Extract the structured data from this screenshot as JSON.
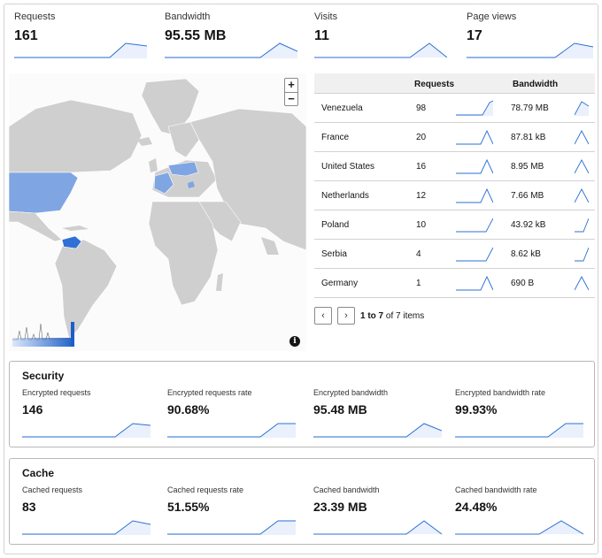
{
  "top_stats": [
    {
      "label": "Requests",
      "value": "161"
    },
    {
      "label": "Bandwidth",
      "value": "95.55 MB"
    },
    {
      "label": "Visits",
      "value": "11"
    },
    {
      "label": "Page views",
      "value": "17"
    }
  ],
  "map": {
    "zoom_in": "+",
    "zoom_out": "−",
    "info": "i",
    "colors": {
      "land": "#cfcfcf",
      "highlight_light": "#7fa6e3",
      "highlight_dark": "#2f6fd6",
      "ocean": "#fbfbfb"
    }
  },
  "table": {
    "headers": {
      "country": "",
      "requests": "Requests",
      "bandwidth": "Bandwidth"
    },
    "rows": [
      {
        "country": "Venezuela",
        "requests": "98",
        "bandwidth": "78.79 MB"
      },
      {
        "country": "France",
        "requests": "20",
        "bandwidth": "87.81 kB"
      },
      {
        "country": "United States",
        "requests": "16",
        "bandwidth": "8.95 MB"
      },
      {
        "country": "Netherlands",
        "requests": "12",
        "bandwidth": "7.66 MB"
      },
      {
        "country": "Poland",
        "requests": "10",
        "bandwidth": "43.92 kB"
      },
      {
        "country": "Serbia",
        "requests": "4",
        "bandwidth": "8.62 kB"
      },
      {
        "country": "Germany",
        "requests": "1",
        "bandwidth": "690 B"
      }
    ],
    "pagination": {
      "prev": "‹",
      "next": "›",
      "range": "1 to 7",
      "of_label": "of",
      "total": "7 items"
    }
  },
  "security": {
    "title": "Security",
    "stats": [
      {
        "label": "Encrypted requests",
        "value": "146"
      },
      {
        "label": "Encrypted requests rate",
        "value": "90.68%"
      },
      {
        "label": "Encrypted bandwidth",
        "value": "95.48 MB"
      },
      {
        "label": "Encrypted bandwidth rate",
        "value": "99.93%"
      }
    ]
  },
  "cache": {
    "title": "Cache",
    "stats": [
      {
        "label": "Cached requests",
        "value": "83"
      },
      {
        "label": "Cached requests rate",
        "value": "51.55%"
      },
      {
        "label": "Cached bandwidth",
        "value": "23.39 MB"
      },
      {
        "label": "Cached bandwidth rate",
        "value": "24.48%"
      }
    ]
  },
  "accent_color": "#2b6fd6"
}
